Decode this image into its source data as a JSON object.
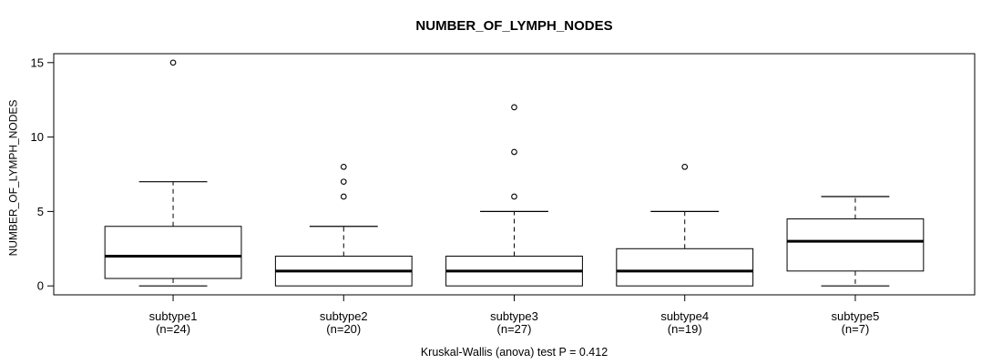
{
  "chart_data": {
    "type": "boxplot",
    "title": "NUMBER_OF_LYMPH_NODES",
    "ylabel": "NUMBER_OF_LYMPH_NODES",
    "footer": "Kruskal-Wallis (anova) test P = 0.412",
    "ylim": [
      0,
      15
    ],
    "yticks": [
      0,
      5,
      10,
      15
    ],
    "grid": false,
    "legend": "none",
    "colors": {
      "line": "#000000",
      "background": "#ffffff",
      "box_fill": "#ffffff"
    },
    "groups": [
      {
        "label": "subtype1",
        "count_label": "(n=24)",
        "n": 24,
        "whisker_low": 0,
        "q1": 0.5,
        "median": 2,
        "q3": 4,
        "whisker_high": 7,
        "outliers": [
          15
        ]
      },
      {
        "label": "subtype2",
        "count_label": "(n=20)",
        "n": 20,
        "whisker_low": 0,
        "q1": 0,
        "median": 1,
        "q3": 2,
        "whisker_high": 4,
        "outliers": [
          6,
          7,
          8
        ]
      },
      {
        "label": "subtype3",
        "count_label": "(n=27)",
        "n": 27,
        "whisker_low": 0,
        "q1": 0,
        "median": 1,
        "q3": 2,
        "whisker_high": 5,
        "outliers": [
          6,
          9,
          12
        ]
      },
      {
        "label": "subtype4",
        "count_label": "(n=19)",
        "n": 19,
        "whisker_low": 0,
        "q1": 0,
        "median": 1,
        "q3": 2.5,
        "whisker_high": 5,
        "outliers": [
          8
        ]
      },
      {
        "label": "subtype5",
        "count_label": "(n=7)",
        "n": 7,
        "whisker_low": 0,
        "q1": 1,
        "median": 3,
        "q3": 4.5,
        "whisker_high": 6,
        "outliers": []
      }
    ]
  }
}
